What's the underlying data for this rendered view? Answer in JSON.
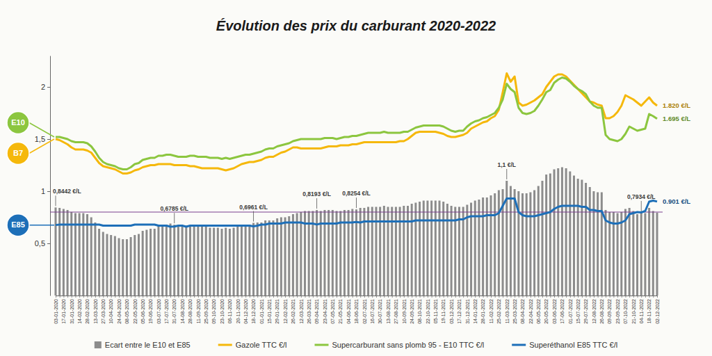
{
  "chart_data": {
    "type": "line",
    "title": "Évolution des prix du carburant 2020-2022",
    "categories": [
      "03-01-2020",
      null,
      "17-01-2020",
      null,
      "31-01-2020",
      null,
      "14-02-2020",
      null,
      "28-02-2020",
      null,
      "13-03-2020",
      null,
      "27-03-2020",
      null,
      "10-04-2020",
      null,
      "24-04-2020",
      null,
      "08-05-2020",
      null,
      "22-05-2020",
      null,
      "05-06-2020",
      null,
      "19-06-2020",
      null,
      "03-07-2020",
      null,
      "17-07-2020",
      null,
      "31-07-2020",
      null,
      "14-08-2020",
      null,
      "28-08-2020",
      null,
      "11-09-2020",
      null,
      "25-09-2020",
      null,
      "09-10-2020",
      null,
      "23-10-2020",
      null,
      "06-11-2020",
      null,
      "20-11-2020",
      null,
      "04-12-2020",
      null,
      "18-12-2020",
      null,
      "01-01-2021",
      null,
      "15-01-2021",
      null,
      "29-01-2021",
      null,
      "12-02-2021",
      null,
      "26-02-2021",
      null,
      "12-03-2021",
      null,
      "26-03-2021",
      null,
      "09-04-2021",
      null,
      "23-04-2021",
      null,
      "07-05-2021",
      null,
      "21-05-2021",
      null,
      "04-06-2021",
      null,
      "18-06-2021",
      null,
      "02-07-2021",
      null,
      "16-07-2021",
      null,
      "30-07-2021",
      null,
      "13-08-2021",
      null,
      "27-08-2021",
      null,
      "10-09-2021",
      null,
      "24-09-2021",
      null,
      "08-10-2021",
      null,
      "22-10-2021",
      null,
      "05-11-2021",
      null,
      "19-11-2021",
      null,
      "03-12-2021",
      null,
      "17-12-2021",
      null,
      "31-12-2021",
      null,
      "14-01-2022",
      null,
      "28-01-2022",
      null,
      "11-02-2022",
      null,
      "25-02-2022",
      null,
      "11-03-2022",
      null,
      "25-03-2022",
      null,
      "08-04-2022",
      null,
      "22-04-2022",
      null,
      "06-05-2022",
      null,
      "20-05-2022",
      null,
      "03-06-2022",
      null,
      "17-06-2022",
      null,
      "01-07-2022",
      null,
      "15-07-2022",
      null,
      "29-07-2022",
      null,
      "12-08-2022",
      null,
      "26-08-2022",
      null,
      "09-09-2022",
      null,
      "23-09-2022",
      null,
      "07-10-2022",
      null,
      "21-10-2022",
      null,
      "04-11-2022",
      null,
      "18-11-2022",
      null,
      "02-12-2022"
    ],
    "ylim": [
      0,
      2.3
    ],
    "yticks": [
      {
        "value": 0.5,
        "label": "0,5"
      },
      1,
      {
        "value": 1.5,
        "label": "1,5"
      },
      2
    ],
    "grid": false,
    "legend": "bottom",
    "reference_line": 0.8,
    "series": [
      {
        "name": "Ecart entre le E10 et E85",
        "type": "bar",
        "color": "#8c8c8c",
        "values": [
          0.8442,
          0.84,
          0.83,
          0.82,
          0.8,
          0.79,
          0.79,
          0.79,
          0.78,
          0.75,
          0.7,
          0.64,
          0.61,
          0.59,
          0.58,
          0.57,
          0.55,
          0.54,
          0.54,
          0.56,
          0.58,
          0.59,
          0.62,
          0.63,
          0.64,
          0.64,
          0.67,
          0.67,
          0.68,
          0.69,
          0.6785,
          0.66,
          0.66,
          0.67,
          0.67,
          0.67,
          0.66,
          0.66,
          0.66,
          0.65,
          0.65,
          0.65,
          0.64,
          0.65,
          0.64,
          0.65,
          0.66,
          0.67,
          0.68,
          0.68,
          0.6961,
          0.7,
          0.7,
          0.72,
          0.72,
          0.72,
          0.74,
          0.75,
          0.75,
          0.76,
          0.78,
          0.79,
          0.8,
          0.81,
          0.81,
          0.81,
          0.8193,
          0.81,
          0.82,
          0.82,
          0.82,
          0.81,
          0.81,
          0.82,
          0.82,
          0.83,
          0.8254,
          0.84,
          0.84,
          0.85,
          0.85,
          0.85,
          0.85,
          0.86,
          0.85,
          0.85,
          0.85,
          0.85,
          0.86,
          0.86,
          0.88,
          0.89,
          0.9,
          0.91,
          0.91,
          0.91,
          0.91,
          0.91,
          0.9,
          0.88,
          0.86,
          0.85,
          0.85,
          0.85,
          0.87,
          0.89,
          0.91,
          0.92,
          0.94,
          0.94,
          0.96,
          0.98,
          1.01,
          1.02,
          1.1,
          1.05,
          1.02,
          1.0,
          0.98,
          0.98,
          0.99,
          1.01,
          1.05,
          1.1,
          1.16,
          1.17,
          1.21,
          1.22,
          1.23,
          1.22,
          1.19,
          1.15,
          1.12,
          1.11,
          1.08,
          1.04,
          1.0,
          0.99,
          0.99,
          0.82,
          0.8,
          0.8,
          0.79,
          0.8,
          0.83,
          0.84,
          0.81,
          0.78,
          0.7934,
          0.79,
          0.84,
          0.81,
          0.794
        ],
        "annotations": [
          {
            "text": "0,8442 €/L",
            "index": 0
          },
          {
            "text": "0,6785 €/L",
            "index": 30
          },
          {
            "text": "0,6961 €/L",
            "index": 50
          },
          {
            "text": "0,8193 €/L",
            "index": 66
          },
          {
            "text": "0,8254 €/L",
            "index": 76
          },
          {
            "text": "1,1 €/L",
            "index": 114
          },
          {
            "text": "0,7934 €/L",
            "index": 148
          }
        ]
      },
      {
        "name": "Gazole TTC €/l",
        "type": "line",
        "color": "#f5b80b",
        "badge": "B7",
        "end_label": "1.820 €/L",
        "values": [
          1.5,
          1.49,
          1.47,
          1.45,
          1.42,
          1.4,
          1.4,
          1.4,
          1.39,
          1.37,
          1.32,
          1.27,
          1.24,
          1.23,
          1.22,
          1.21,
          1.19,
          1.17,
          1.17,
          1.18,
          1.2,
          1.21,
          1.23,
          1.24,
          1.25,
          1.25,
          1.26,
          1.26,
          1.26,
          1.26,
          1.25,
          1.25,
          1.25,
          1.25,
          1.24,
          1.24,
          1.23,
          1.22,
          1.22,
          1.22,
          1.22,
          1.22,
          1.21,
          1.2,
          1.21,
          1.22,
          1.24,
          1.26,
          1.27,
          1.28,
          1.28,
          1.29,
          1.3,
          1.32,
          1.33,
          1.33,
          1.35,
          1.37,
          1.38,
          1.4,
          1.42,
          1.42,
          1.41,
          1.41,
          1.41,
          1.41,
          1.41,
          1.41,
          1.42,
          1.43,
          1.43,
          1.43,
          1.44,
          1.44,
          1.44,
          1.45,
          1.45,
          1.46,
          1.47,
          1.47,
          1.47,
          1.47,
          1.47,
          1.47,
          1.47,
          1.47,
          1.47,
          1.48,
          1.48,
          1.5,
          1.53,
          1.56,
          1.57,
          1.57,
          1.57,
          1.57,
          1.57,
          1.56,
          1.55,
          1.53,
          1.52,
          1.52,
          1.53,
          1.54,
          1.56,
          1.6,
          1.62,
          1.64,
          1.66,
          1.67,
          1.7,
          1.72,
          1.78,
          1.95,
          2.13,
          2.05,
          2.1,
          1.85,
          1.82,
          1.83,
          1.85,
          1.87,
          1.9,
          1.93,
          2.0,
          2.05,
          2.1,
          2.12,
          2.12,
          2.1,
          2.06,
          2.02,
          1.98,
          1.94,
          1.9,
          1.86,
          1.85,
          1.83,
          1.82,
          1.7,
          1.7,
          1.72,
          1.76,
          1.82,
          1.92,
          1.9,
          1.88,
          1.85,
          1.82,
          1.86,
          1.9,
          1.85,
          1.82
        ]
      },
      {
        "name": "Supercarburant sans plomb 95 - E10 TTC €/l",
        "type": "line",
        "color": "#8cc63f",
        "badge": "E10",
        "end_label": "1.695 €/L",
        "values": [
          1.52,
          1.52,
          1.51,
          1.5,
          1.48,
          1.47,
          1.47,
          1.47,
          1.46,
          1.43,
          1.38,
          1.32,
          1.28,
          1.26,
          1.25,
          1.24,
          1.22,
          1.21,
          1.21,
          1.23,
          1.26,
          1.27,
          1.3,
          1.31,
          1.32,
          1.32,
          1.34,
          1.34,
          1.35,
          1.35,
          1.34,
          1.33,
          1.33,
          1.33,
          1.34,
          1.34,
          1.33,
          1.33,
          1.33,
          1.32,
          1.32,
          1.32,
          1.31,
          1.32,
          1.31,
          1.32,
          1.33,
          1.34,
          1.35,
          1.35,
          1.36,
          1.37,
          1.38,
          1.4,
          1.41,
          1.41,
          1.43,
          1.44,
          1.45,
          1.46,
          1.48,
          1.49,
          1.5,
          1.5,
          1.5,
          1.5,
          1.5,
          1.5,
          1.51,
          1.51,
          1.51,
          1.5,
          1.51,
          1.52,
          1.52,
          1.53,
          1.53,
          1.54,
          1.55,
          1.56,
          1.56,
          1.56,
          1.56,
          1.57,
          1.56,
          1.56,
          1.56,
          1.56,
          1.57,
          1.57,
          1.59,
          1.61,
          1.62,
          1.63,
          1.63,
          1.63,
          1.63,
          1.63,
          1.62,
          1.6,
          1.58,
          1.57,
          1.58,
          1.58,
          1.62,
          1.65,
          1.67,
          1.68,
          1.7,
          1.71,
          1.73,
          1.75,
          1.8,
          1.88,
          2.03,
          1.98,
          1.95,
          1.8,
          1.75,
          1.74,
          1.75,
          1.77,
          1.82,
          1.88,
          1.95,
          1.97,
          2.04,
          2.07,
          2.09,
          2.08,
          2.05,
          2.01,
          1.98,
          1.96,
          1.93,
          1.86,
          1.82,
          1.8,
          1.8,
          1.54,
          1.5,
          1.49,
          1.48,
          1.5,
          1.55,
          1.62,
          1.6,
          1.58,
          1.59,
          1.6,
          1.74,
          1.72,
          1.695
        ]
      },
      {
        "name": "Superéthanol E85 TTC €/l",
        "type": "line",
        "color": "#1d6fb8",
        "badge": "E85",
        "end_label": "0.901 €/L",
        "values": [
          0.6758,
          0.68,
          0.68,
          0.68,
          0.68,
          0.68,
          0.68,
          0.68,
          0.68,
          0.68,
          0.68,
          0.68,
          0.67,
          0.67,
          0.67,
          0.67,
          0.67,
          0.67,
          0.67,
          0.67,
          0.68,
          0.68,
          0.68,
          0.68,
          0.68,
          0.68,
          0.67,
          0.67,
          0.67,
          0.66,
          0.6615,
          0.67,
          0.67,
          0.66,
          0.67,
          0.67,
          0.67,
          0.67,
          0.67,
          0.67,
          0.67,
          0.67,
          0.67,
          0.67,
          0.67,
          0.67,
          0.67,
          0.67,
          0.67,
          0.67,
          0.6639,
          0.67,
          0.68,
          0.68,
          0.69,
          0.69,
          0.69,
          0.69,
          0.7,
          0.7,
          0.7,
          0.7,
          0.7,
          0.69,
          0.69,
          0.69,
          0.6807,
          0.69,
          0.69,
          0.69,
          0.69,
          0.69,
          0.7,
          0.7,
          0.7,
          0.7,
          0.7046,
          0.7,
          0.71,
          0.71,
          0.71,
          0.71,
          0.71,
          0.71,
          0.71,
          0.71,
          0.71,
          0.71,
          0.71,
          0.71,
          0.71,
          0.72,
          0.72,
          0.72,
          0.72,
          0.72,
          0.72,
          0.72,
          0.72,
          0.72,
          0.72,
          0.72,
          0.73,
          0.73,
          0.75,
          0.76,
          0.76,
          0.76,
          0.76,
          0.77,
          0.77,
          0.77,
          0.79,
          0.86,
          0.93,
          0.93,
          0.93,
          0.8,
          0.77,
          0.76,
          0.76,
          0.76,
          0.77,
          0.78,
          0.79,
          0.8,
          0.83,
          0.85,
          0.86,
          0.86,
          0.86,
          0.86,
          0.86,
          0.85,
          0.85,
          0.82,
          0.82,
          0.81,
          0.81,
          0.72,
          0.7,
          0.69,
          0.69,
          0.7,
          0.72,
          0.78,
          0.79,
          0.8,
          0.7966,
          0.81,
          0.9,
          0.91,
          0.901
        ]
      }
    ]
  }
}
